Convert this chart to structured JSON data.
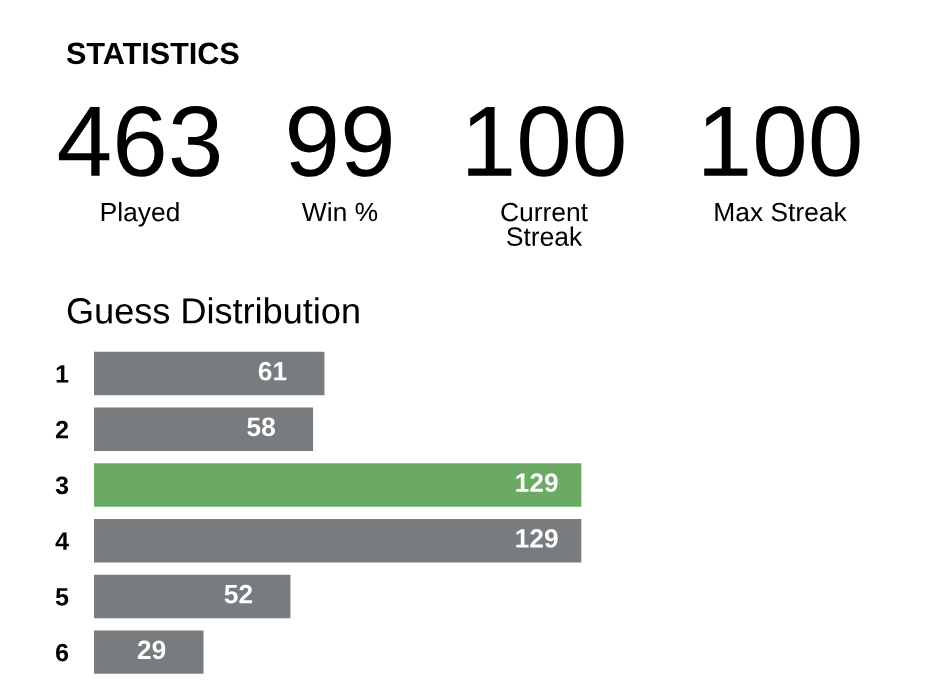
{
  "chart_data": [
    {
      "type": "other",
      "title": "STATISTICS",
      "categories": [
        "Played",
        "Win %",
        "Current\nStreak",
        "Max Streak"
      ],
      "values": [
        463,
        99,
        100,
        100
      ],
      "data_labels": true
    },
    {
      "type": "bar",
      "orientation": "horizontal",
      "title": "Guess Distribution",
      "categories": [
        "1",
        "2",
        "3",
        "4",
        "5",
        "6"
      ],
      "values": [
        61,
        58,
        129,
        129,
        52,
        29
      ],
      "colors": [
        "#787c7e",
        "#787c7e",
        "#6aaa64",
        "#787c7e",
        "#787c7e",
        "#787c7e"
      ],
      "data_labels": true,
      "tick_labels": "y",
      "grid": false,
      "legend": false
    }
  ]
}
